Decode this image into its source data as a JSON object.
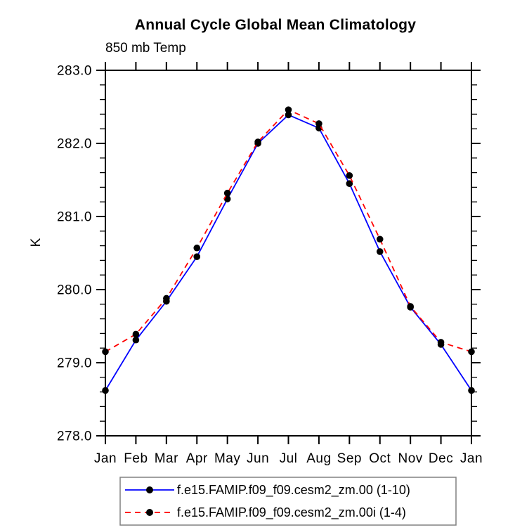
{
  "chart_data": {
    "type": "line",
    "title": "Annual Cycle Global Mean Climatology",
    "subtitle": "850 mb Temp",
    "ylabel": "K",
    "xlabel": "",
    "categories": [
      "Jan",
      "Feb",
      "Mar",
      "Apr",
      "May",
      "Jun",
      "Jul",
      "Aug",
      "Sep",
      "Oct",
      "Nov",
      "Dec",
      "Jan"
    ],
    "series": [
      {
        "name": "f.e15.FAMIP.f09_f09.cesm2_zm.00 (1-10)",
        "color": "#0000ff",
        "line_style": "solid",
        "marker": "circle",
        "marker_color": "#000000",
        "values": [
          278.62,
          279.31,
          279.84,
          280.45,
          281.24,
          282.0,
          282.39,
          282.21,
          281.45,
          280.52,
          279.76,
          279.25,
          278.62
        ]
      },
      {
        "name": "f.e15.FAMIP.f09_f09.cesm2_zm.00i (1-4)",
        "color": "#ff0000",
        "line_style": "dashed",
        "marker": "circle",
        "marker_color": "#000000",
        "values": [
          279.15,
          279.39,
          279.88,
          280.57,
          281.32,
          282.02,
          282.46,
          282.27,
          281.56,
          280.69,
          279.77,
          279.28,
          279.15
        ]
      }
    ],
    "ylim": [
      278.0,
      283.0
    ],
    "ytick_major_step": 1.0,
    "ytick_minor_step": 0.2,
    "ytick_labels": [
      "278.0",
      "279.0",
      "280.0",
      "281.0",
      "282.0",
      "283.0"
    ],
    "grid": false,
    "legend_position": "bottom",
    "axis_color": "#000000",
    "background_color": "#ffffff"
  }
}
